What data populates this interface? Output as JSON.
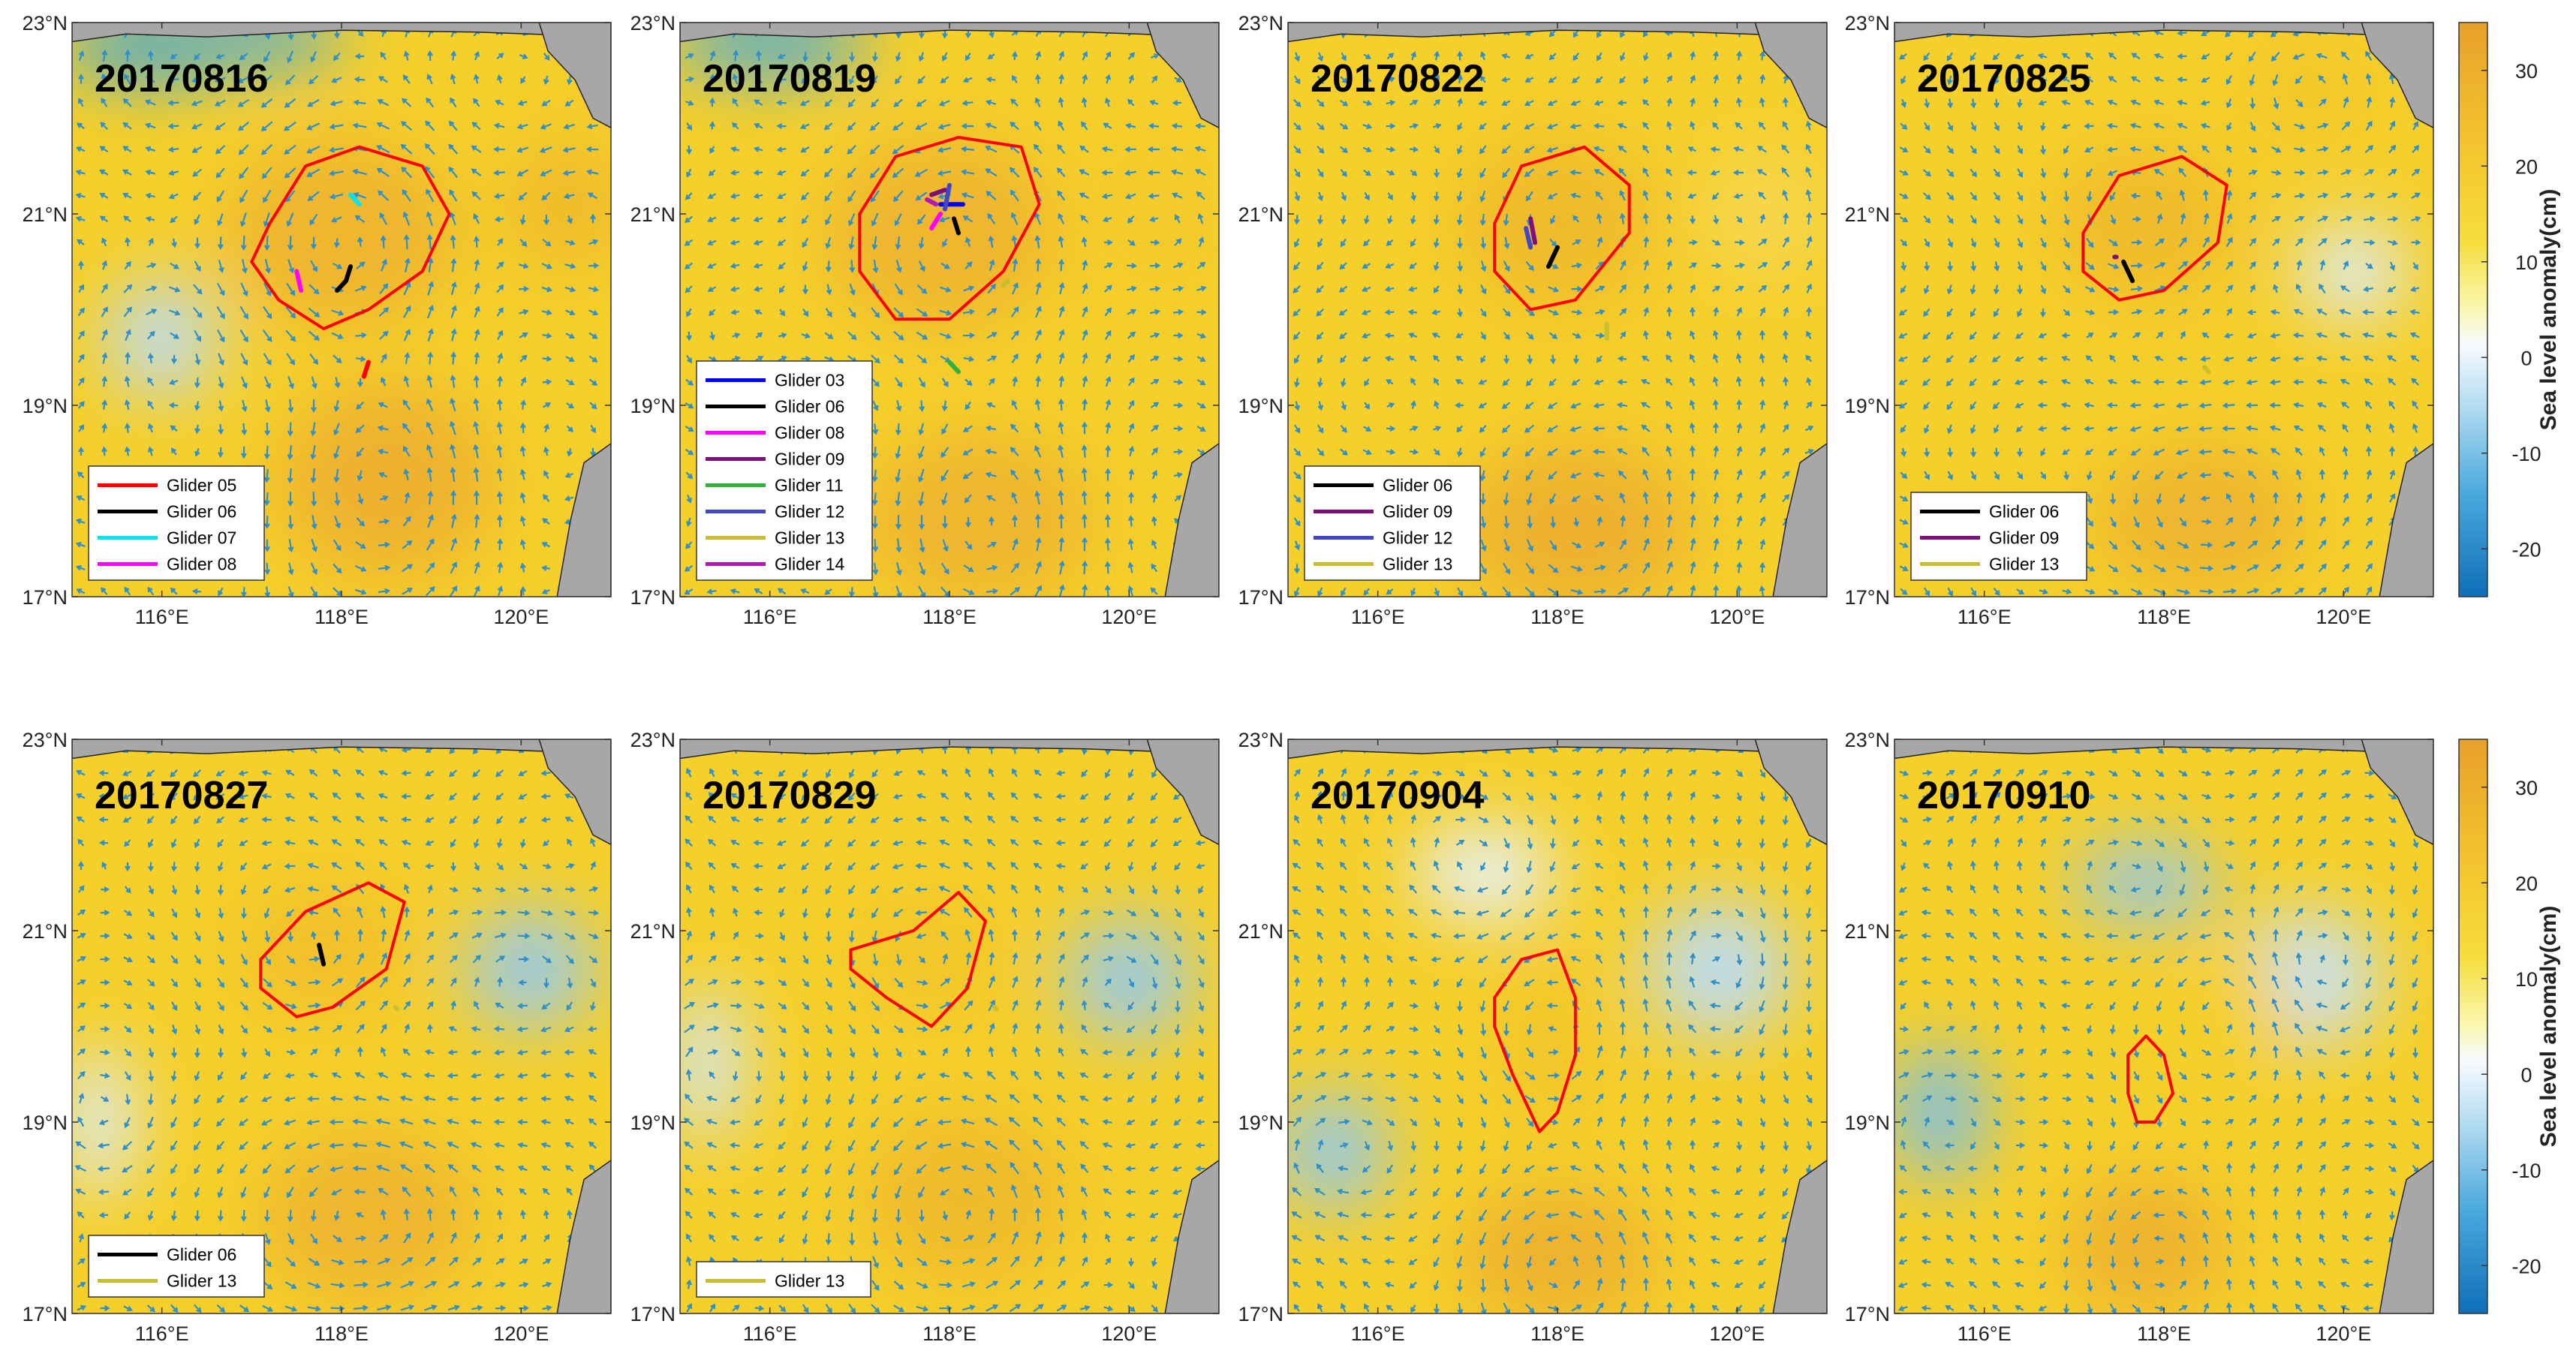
{
  "figure": {
    "xlim": [
      115,
      121
    ],
    "ylim": [
      17,
      23
    ],
    "xticks": [
      116,
      118,
      120
    ],
    "xtick_labels": [
      "116°E",
      "118°E",
      "120°E"
    ],
    "yticks": [
      17,
      19,
      21,
      23
    ],
    "ytick_labels": [
      "17°N",
      "19°N",
      "21°N",
      "23°N"
    ],
    "colors": {
      "ocean_warm": "#f5cf2a",
      "ocean_hot": "#eeb12d",
      "ocean_neutral": "#fbfbf2",
      "ocean_cool": "#a8d2ec",
      "land": "#a7a7a7",
      "arrow": "#2f8fc8",
      "eddy_contour": "#ff0000"
    }
  },
  "glider_colors": {
    "03": "#0000ff",
    "05": "#ff0000",
    "06": "#000000",
    "07": "#00e5ee",
    "08": "#ff00ff",
    "09": "#7d0f7d",
    "11": "#34b03d",
    "12": "#4147c8",
    "13": "#c8be32",
    "14": "#b418b4"
  },
  "panels": [
    {
      "date": "20170816",
      "legend": [
        {
          "text": "Glider   05",
          "id": "05"
        },
        {
          "text": "Glider   06",
          "id": "06"
        },
        {
          "text": "Glider   07",
          "id": "07"
        },
        {
          "text": "Glider   08",
          "id": "08"
        }
      ],
      "eddy": [
        [
          117.2,
          20.9
        ],
        [
          117.6,
          21.5
        ],
        [
          118.2,
          21.7
        ],
        [
          118.9,
          21.5
        ],
        [
          119.2,
          21.0
        ],
        [
          118.9,
          20.4
        ],
        [
          118.3,
          20.0
        ],
        [
          117.8,
          19.8
        ],
        [
          117.3,
          20.1
        ],
        [
          117.0,
          20.5
        ]
      ],
      "tracks": [
        {
          "id": "05",
          "points": [
            [
              118.3,
              19.45
            ],
            [
              118.25,
              19.3
            ]
          ]
        },
        {
          "id": "06",
          "points": [
            [
              118.1,
              20.45
            ],
            [
              118.05,
              20.3
            ],
            [
              117.95,
              20.2
            ]
          ]
        },
        {
          "id": "07",
          "points": [
            [
              118.1,
              21.2
            ],
            [
              118.2,
              21.1
            ]
          ]
        },
        {
          "id": "08",
          "points": [
            [
              117.5,
              20.4
            ],
            [
              117.55,
              20.2
            ]
          ]
        }
      ],
      "anomalies": [
        {
          "lon": 115.9,
          "lat": 22.75,
          "value": -20,
          "rx": 1.0,
          "ry": 0.35
        },
        {
          "lon": 117.0,
          "lat": 22.85,
          "value": -18,
          "rx": 1.0,
          "ry": 0.3
        },
        {
          "lon": 118.0,
          "lat": 20.8,
          "value": 30,
          "rx": 1.3,
          "ry": 1.0
        },
        {
          "lon": 120.5,
          "lat": 21.1,
          "value": 28,
          "rx": 0.7,
          "ry": 0.7
        },
        {
          "lon": 118.5,
          "lat": 18.2,
          "value": 32,
          "rx": 1.2,
          "ry": 1.0
        },
        {
          "lon": 116.0,
          "lat": 19.7,
          "value": 2,
          "rx": 0.6,
          "ry": 0.6
        }
      ]
    },
    {
      "date": "20170819",
      "legend": [
        {
          "text": "Glider   03",
          "id": "03"
        },
        {
          "text": "Glider   06",
          "id": "06"
        },
        {
          "text": "Glider   08",
          "id": "08"
        },
        {
          "text": "Glider   09",
          "id": "09"
        },
        {
          "text": "Glider   11",
          "id": "11"
        },
        {
          "text": "Glider   12",
          "id": "12"
        },
        {
          "text": "Glider   13",
          "id": "13"
        },
        {
          "text": "Glider   14",
          "id": "14"
        }
      ],
      "eddy": [
        [
          117.0,
          21.0
        ],
        [
          117.4,
          21.6
        ],
        [
          118.1,
          21.8
        ],
        [
          118.8,
          21.7
        ],
        [
          119.0,
          21.1
        ],
        [
          118.6,
          20.4
        ],
        [
          118.0,
          19.9
        ],
        [
          117.4,
          19.9
        ],
        [
          117.0,
          20.4
        ]
      ],
      "tracks": [
        {
          "id": "03",
          "points": [
            [
              117.9,
              21.1
            ],
            [
              118.15,
              21.1
            ]
          ]
        },
        {
          "id": "06",
          "points": [
            [
              118.05,
              20.95
            ],
            [
              118.1,
              20.8
            ]
          ]
        },
        {
          "id": "08",
          "points": [
            [
              117.8,
              20.85
            ],
            [
              117.9,
              21.0
            ]
          ]
        },
        {
          "id": "09",
          "points": [
            [
              117.8,
              21.2
            ],
            [
              117.95,
              21.25
            ]
          ]
        },
        {
          "id": "11",
          "points": [
            [
              118.0,
              19.45
            ],
            [
              118.1,
              19.35
            ]
          ]
        },
        {
          "id": "12",
          "points": [
            [
              118.0,
              21.3
            ],
            [
              117.95,
              21.05
            ]
          ]
        },
        {
          "id": "13",
          "points": [
            [
              118.6,
              20.25
            ],
            [
              118.65,
              20.3
            ]
          ]
        },
        {
          "id": "14",
          "points": [
            [
              117.75,
              21.15
            ],
            [
              117.85,
              21.1
            ]
          ]
        }
      ],
      "anomalies": [
        {
          "lon": 116.0,
          "lat": 22.8,
          "value": -18,
          "rx": 1.1,
          "ry": 0.35
        },
        {
          "lon": 117.9,
          "lat": 20.8,
          "value": 30,
          "rx": 1.3,
          "ry": 1.0
        },
        {
          "lon": 120.4,
          "lat": 21.0,
          "value": 22,
          "rx": 0.8,
          "ry": 0.8
        },
        {
          "lon": 118.3,
          "lat": 17.8,
          "value": 30,
          "rx": 1.3,
          "ry": 0.9
        }
      ]
    },
    {
      "date": "20170822",
      "legend": [
        {
          "text": "Glider   06",
          "id": "06"
        },
        {
          "text": "Glider   09",
          "id": "09"
        },
        {
          "text": "Glider   12",
          "id": "12"
        },
        {
          "text": "Glider   13",
          "id": "13"
        }
      ],
      "eddy": [
        [
          117.3,
          20.9
        ],
        [
          117.6,
          21.5
        ],
        [
          118.3,
          21.7
        ],
        [
          118.8,
          21.3
        ],
        [
          118.8,
          20.8
        ],
        [
          118.2,
          20.1
        ],
        [
          117.7,
          20.0
        ],
        [
          117.3,
          20.4
        ]
      ],
      "tracks": [
        {
          "id": "06",
          "points": [
            [
              118.0,
              20.65
            ],
            [
              117.9,
              20.45
            ]
          ]
        },
        {
          "id": "09",
          "points": [
            [
              117.7,
              20.95
            ],
            [
              117.75,
              20.7
            ]
          ]
        },
        {
          "id": "12",
          "points": [
            [
              117.65,
              20.85
            ],
            [
              117.7,
              20.65
            ]
          ]
        },
        {
          "id": "13",
          "points": [
            [
              118.55,
              19.85
            ],
            [
              118.55,
              19.7
            ]
          ]
        }
      ],
      "anomalies": [
        {
          "lon": 118.0,
          "lat": 20.9,
          "value": 28,
          "rx": 1.1,
          "ry": 0.9
        },
        {
          "lon": 118.2,
          "lat": 17.7,
          "value": 32,
          "rx": 1.3,
          "ry": 0.9
        },
        {
          "lon": 120.3,
          "lat": 21.0,
          "value": 18,
          "rx": 0.8,
          "ry": 0.7
        }
      ]
    },
    {
      "date": "20170825",
      "legend": [
        {
          "text": "Glider   06",
          "id": "06"
        },
        {
          "text": "Glider   09",
          "id": "09"
        },
        {
          "text": "Glider   13",
          "id": "13"
        }
      ],
      "eddy": [
        [
          117.1,
          20.8
        ],
        [
          117.5,
          21.4
        ],
        [
          118.2,
          21.6
        ],
        [
          118.7,
          21.3
        ],
        [
          118.6,
          20.7
        ],
        [
          118.0,
          20.2
        ],
        [
          117.5,
          20.1
        ],
        [
          117.1,
          20.4
        ]
      ],
      "tracks": [
        {
          "id": "06",
          "points": [
            [
              117.55,
              20.5
            ],
            [
              117.65,
              20.3
            ]
          ]
        },
        {
          "id": "09",
          "points": [
            [
              117.45,
              20.55
            ],
            [
              117.47,
              20.55
            ]
          ]
        },
        {
          "id": "13",
          "points": [
            [
              118.45,
              19.4
            ],
            [
              118.5,
              19.35
            ]
          ]
        }
      ],
      "anomalies": [
        {
          "lon": 117.8,
          "lat": 20.9,
          "value": 28,
          "rx": 1.0,
          "ry": 0.8
        },
        {
          "lon": 120.1,
          "lat": 20.4,
          "value": 5,
          "rx": 0.6,
          "ry": 0.5
        },
        {
          "lon": 119.6,
          "lat": 22.3,
          "value": 24,
          "rx": 0.6,
          "ry": 0.5
        },
        {
          "lon": 118.4,
          "lat": 17.8,
          "value": 30,
          "rx": 1.2,
          "ry": 0.8
        }
      ]
    },
    {
      "date": "20170827",
      "legend": [
        {
          "text": "Glider   06",
          "id": "06"
        },
        {
          "text": "Glider   13",
          "id": "13"
        }
      ],
      "eddy": [
        [
          117.1,
          20.7
        ],
        [
          117.6,
          21.2
        ],
        [
          118.3,
          21.5
        ],
        [
          118.7,
          21.3
        ],
        [
          118.5,
          20.6
        ],
        [
          117.9,
          20.2
        ],
        [
          117.5,
          20.1
        ],
        [
          117.1,
          20.4
        ]
      ],
      "tracks": [
        {
          "id": "06",
          "points": [
            [
              117.75,
              20.85
            ],
            [
              117.8,
              20.65
            ]
          ]
        },
        {
          "id": "13",
          "points": [
            [
              118.6,
              20.2
            ],
            [
              118.62,
              20.18
            ]
          ]
        }
      ],
      "anomalies": [
        {
          "lon": 120.1,
          "lat": 20.6,
          "value": -3,
          "rx": 0.7,
          "ry": 0.6
        },
        {
          "lon": 117.8,
          "lat": 20.8,
          "value": 26,
          "rx": 0.9,
          "ry": 0.7
        },
        {
          "lon": 118.3,
          "lat": 18.0,
          "value": 30,
          "rx": 1.2,
          "ry": 0.9
        },
        {
          "lon": 115.3,
          "lat": 19.0,
          "value": 5,
          "rx": 0.4,
          "ry": 0.8
        }
      ]
    },
    {
      "date": "20170829",
      "legend": [
        {
          "text": "Glider   13",
          "id": "13"
        }
      ],
      "eddy": [
        [
          116.9,
          20.8
        ],
        [
          117.6,
          21.0
        ],
        [
          118.1,
          21.4
        ],
        [
          118.4,
          21.1
        ],
        [
          118.2,
          20.4
        ],
        [
          117.8,
          20.0
        ],
        [
          117.3,
          20.3
        ],
        [
          116.9,
          20.6
        ]
      ],
      "tracks": [
        {
          "id": "13",
          "points": [
            [
              118.5,
              20.2
            ],
            [
              118.52,
              20.18
            ]
          ]
        }
      ],
      "anomalies": [
        {
          "lon": 120.0,
          "lat": 20.5,
          "value": -3,
          "rx": 0.7,
          "ry": 0.6
        },
        {
          "lon": 117.8,
          "lat": 20.7,
          "value": 24,
          "rx": 0.8,
          "ry": 0.6
        },
        {
          "lon": 118.2,
          "lat": 18.2,
          "value": 28,
          "rx": 1.2,
          "ry": 0.9
        },
        {
          "lon": 115.3,
          "lat": 19.6,
          "value": 4,
          "rx": 0.4,
          "ry": 0.8
        }
      ]
    },
    {
      "date": "20170904",
      "legend": [],
      "eddy": [
        [
          117.3,
          20.3
        ],
        [
          117.6,
          20.7
        ],
        [
          118.0,
          20.8
        ],
        [
          118.2,
          20.3
        ],
        [
          118.2,
          19.7
        ],
        [
          118.0,
          19.1
        ],
        [
          117.8,
          18.9
        ],
        [
          117.5,
          19.5
        ],
        [
          117.3,
          20.0
        ]
      ],
      "tracks": [],
      "anomalies": [
        {
          "lon": 115.5,
          "lat": 18.7,
          "value": -4,
          "rx": 0.6,
          "ry": 0.6
        },
        {
          "lon": 119.8,
          "lat": 20.6,
          "value": 2,
          "rx": 0.8,
          "ry": 0.7
        },
        {
          "lon": 117.9,
          "lat": 19.8,
          "value": 24,
          "rx": 0.5,
          "ry": 0.9
        },
        {
          "lon": 118.0,
          "lat": 17.6,
          "value": 32,
          "rx": 1.1,
          "ry": 0.7
        },
        {
          "lon": 117.2,
          "lat": 21.6,
          "value": 6,
          "rx": 0.8,
          "ry": 0.5
        }
      ]
    },
    {
      "date": "20170910",
      "legend": [],
      "eddy": [
        [
          117.6,
          19.7
        ],
        [
          117.8,
          19.9
        ],
        [
          118.0,
          19.7
        ],
        [
          118.1,
          19.3
        ],
        [
          117.9,
          19.0
        ],
        [
          117.7,
          19.0
        ],
        [
          117.6,
          19.3
        ]
      ],
      "tracks": [],
      "anomalies": [
        {
          "lon": 115.5,
          "lat": 19.1,
          "value": -8,
          "rx": 0.5,
          "ry": 0.7
        },
        {
          "lon": 117.8,
          "lat": 21.5,
          "value": -4,
          "rx": 0.8,
          "ry": 0.4
        },
        {
          "lon": 119.6,
          "lat": 20.5,
          "value": 3,
          "rx": 0.8,
          "ry": 0.7
        },
        {
          "lon": 117.8,
          "lat": 17.7,
          "value": 32,
          "rx": 0.9,
          "ry": 0.7
        },
        {
          "lon": 118.8,
          "lat": 20.2,
          "value": 20,
          "rx": 0.6,
          "ry": 0.6
        }
      ]
    }
  ],
  "colorbars": [
    {
      "label": "Sea level anomaly(cm)",
      "ticks": [
        30,
        20,
        10,
        0,
        -10,
        -20
      ],
      "range": [
        -25,
        35
      ]
    },
    {
      "label": "Sea level anomaly(cm)",
      "ticks": [
        30,
        20,
        10,
        0,
        -10,
        -20
      ],
      "range": [
        -25,
        35
      ]
    }
  ]
}
